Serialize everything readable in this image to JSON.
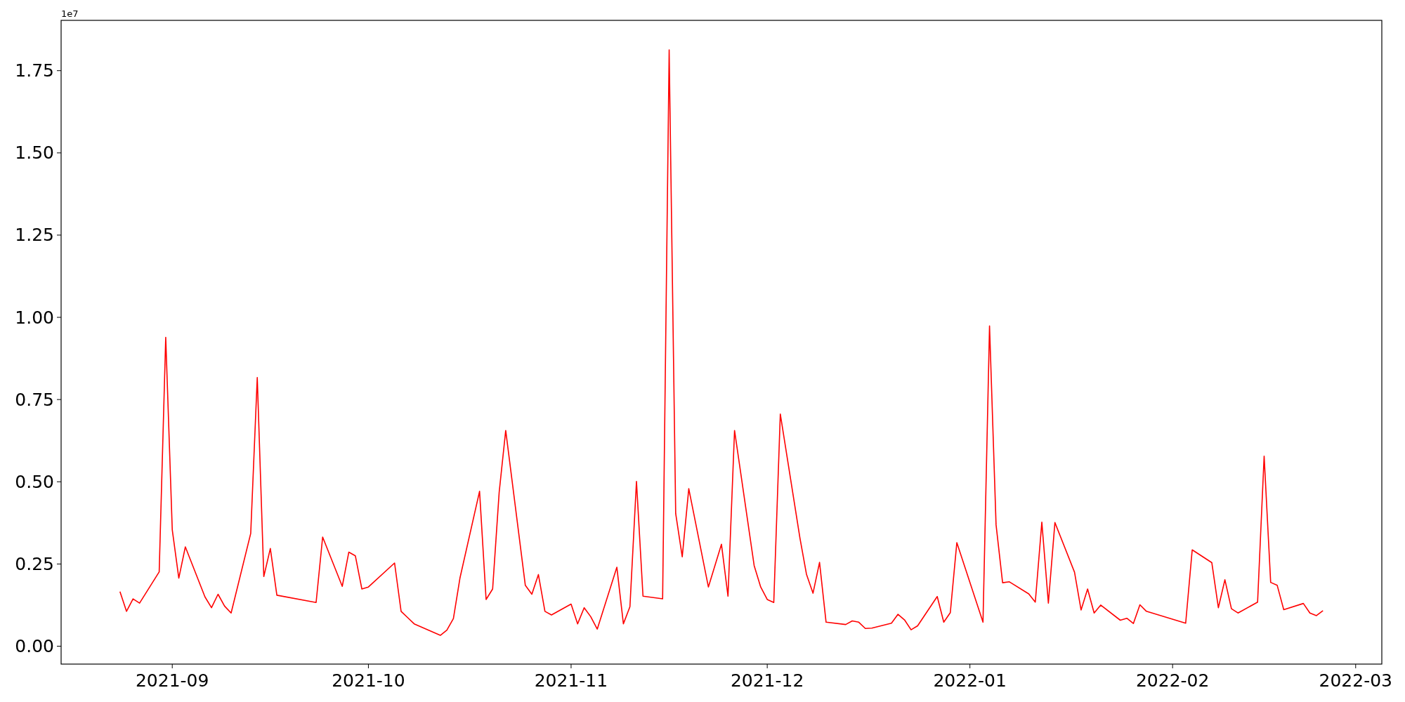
{
  "chart_data": {
    "type": "line",
    "annotations": [
      "1e7"
    ],
    "x": [
      "2021-08-24",
      "2021-08-25",
      "2021-08-26",
      "2021-08-27",
      "2021-08-30",
      "2021-08-31",
      "2021-09-01",
      "2021-09-02",
      "2021-09-03",
      "2021-09-06",
      "2021-09-07",
      "2021-09-08",
      "2021-09-09",
      "2021-09-10",
      "2021-09-13",
      "2021-09-14",
      "2021-09-15",
      "2021-09-16",
      "2021-09-17",
      "2021-09-23",
      "2021-09-24",
      "2021-09-27",
      "2021-09-28",
      "2021-09-29",
      "2021-09-30",
      "2021-10-01",
      "2021-10-05",
      "2021-10-06",
      "2021-10-07",
      "2021-10-08",
      "2021-10-12",
      "2021-10-13",
      "2021-10-14",
      "2021-10-15",
      "2021-10-18",
      "2021-10-19",
      "2021-10-20",
      "2021-10-21",
      "2021-10-22",
      "2021-10-25",
      "2021-10-26",
      "2021-10-27",
      "2021-10-28",
      "2021-10-29",
      "2021-11-01",
      "2021-11-02",
      "2021-11-03",
      "2021-11-04",
      "2021-11-05",
      "2021-11-08",
      "2021-11-09",
      "2021-11-10",
      "2021-11-11",
      "2021-11-12",
      "2021-11-15",
      "2021-11-16",
      "2021-11-17",
      "2021-11-18",
      "2021-11-19",
      "2021-11-22",
      "2021-11-23",
      "2021-11-24",
      "2021-11-25",
      "2021-11-26",
      "2021-11-29",
      "2021-11-30",
      "2021-12-01",
      "2021-12-02",
      "2021-12-03",
      "2021-12-06",
      "2021-12-07",
      "2021-12-08",
      "2021-12-09",
      "2021-12-10",
      "2021-12-13",
      "2021-12-14",
      "2021-12-15",
      "2021-12-16",
      "2021-12-17",
      "2021-12-20",
      "2021-12-21",
      "2021-12-22",
      "2021-12-23",
      "2021-12-24",
      "2021-12-27",
      "2021-12-28",
      "2021-12-29",
      "2021-12-30",
      "2022-01-03",
      "2022-01-04",
      "2022-01-05",
      "2022-01-06",
      "2022-01-07",
      "2022-01-10",
      "2022-01-11",
      "2022-01-12",
      "2022-01-13",
      "2022-01-14",
      "2022-01-17",
      "2022-01-18",
      "2022-01-19",
      "2022-01-20",
      "2022-01-21",
      "2022-01-24",
      "2022-01-25",
      "2022-01-26",
      "2022-01-27",
      "2022-01-28",
      "2022-02-03",
      "2022-02-04",
      "2022-02-07",
      "2022-02-08",
      "2022-02-09",
      "2022-02-10",
      "2022-02-11",
      "2022-02-14",
      "2022-02-15",
      "2022-02-16",
      "2022-02-17",
      "2022-02-18",
      "2022-02-21",
      "2022-02-22",
      "2022-02-23",
      "2022-02-24"
    ],
    "series": [
      {
        "color": "#ff0000",
        "values": [
          0.166,
          0.106,
          0.144,
          0.131,
          0.226,
          0.939,
          0.354,
          0.207,
          0.302,
          0.15,
          0.117,
          0.158,
          0.122,
          0.101,
          0.343,
          0.817,
          0.212,
          0.297,
          0.155,
          0.133,
          0.332,
          0.182,
          0.286,
          0.275,
          0.174,
          0.18,
          0.253,
          0.106,
          0.087,
          0.068,
          0.033,
          0.049,
          0.084,
          0.207,
          0.471,
          0.142,
          0.174,
          0.468,
          0.656,
          0.185,
          0.158,
          0.218,
          0.106,
          0.095,
          0.128,
          0.068,
          0.117,
          0.09,
          0.052,
          0.24,
          0.068,
          0.12,
          0.501,
          0.152,
          0.144,
          1.813,
          0.403,
          0.272,
          0.479,
          0.18,
          0.245,
          0.31,
          0.152,
          0.656,
          0.245,
          0.18,
          0.142,
          0.133,
          0.706,
          0.329,
          0.219,
          0.161,
          0.255,
          0.073,
          0.066,
          0.077,
          0.073,
          0.054,
          0.055,
          0.07,
          0.097,
          0.08,
          0.05,
          0.062,
          0.151,
          0.073,
          0.102,
          0.315,
          0.073,
          0.974,
          0.369,
          0.193,
          0.196,
          0.159,
          0.134,
          0.377,
          0.131,
          0.376,
          0.225,
          0.11,
          0.174,
          0.101,
          0.125,
          0.079,
          0.085,
          0.069,
          0.126,
          0.106,
          0.07,
          0.293,
          0.254,
          0.117,
          0.202,
          0.114,
          0.101,
          0.134,
          0.578,
          0.194,
          0.185,
          0.111,
          0.13,
          0.101,
          0.093,
          0.108
        ]
      }
    ],
    "xlim": [
      "2021-08-15",
      "2022-03-05"
    ],
    "xticks": [
      "2021-09",
      "2021-10",
      "2021-11",
      "2021-12",
      "2022-01",
      "2022-02",
      "2022-03"
    ],
    "ylim": [
      -0.0544,
      1.903
    ],
    "yticks": [
      {
        "value": 0,
        "label": "0.00"
      },
      0.25,
      {
        "value": 0.5,
        "label": "0.50"
      },
      0.75,
      {
        "value": 1,
        "label": "1.00"
      },
      1.25,
      {
        "value": 1.5,
        "label": "1.50"
      },
      1.75
    ],
    "grid": false,
    "marker": "none",
    "line_style": "solid"
  }
}
